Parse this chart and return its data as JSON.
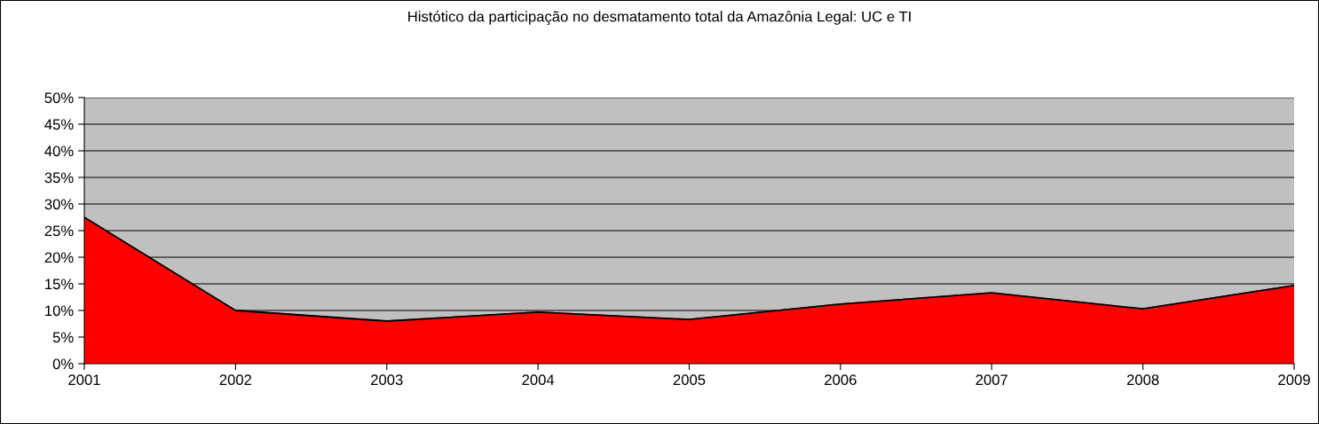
{
  "chart_data": {
    "type": "area",
    "title": "Histótico da participação no desmatamento total da Amazônia Legal: UC e TI",
    "x": [
      2001,
      2002,
      2003,
      2004,
      2005,
      2006,
      2007,
      2008,
      2009
    ],
    "series": [
      {
        "color": "#ff0000",
        "values": [
          27.5,
          10,
          8,
          9.7,
          8.3,
          11.2,
          13.3,
          10.3,
          14.7
        ]
      }
    ],
    "xlim": [
      2001,
      2009
    ],
    "xticks": [
      2001,
      2002,
      2003,
      2004,
      2005,
      2006,
      2007,
      2008,
      2009
    ],
    "ylim": [
      0,
      50
    ],
    "yticks": [
      {
        "value": 0,
        "label": "0%"
      },
      {
        "value": 5,
        "label": "5%"
      },
      {
        "value": 10,
        "label": "10%"
      },
      {
        "value": 15,
        "label": "15%"
      },
      {
        "value": 20,
        "label": "20%"
      },
      {
        "value": 25,
        "label": "25%"
      },
      {
        "value": 30,
        "label": "30%"
      },
      {
        "value": 35,
        "label": "35%"
      },
      {
        "value": 40,
        "label": "40%"
      },
      {
        "value": 45,
        "label": "45%"
      },
      {
        "value": 50,
        "label": "50%"
      }
    ],
    "grid": "y",
    "legend": false
  }
}
